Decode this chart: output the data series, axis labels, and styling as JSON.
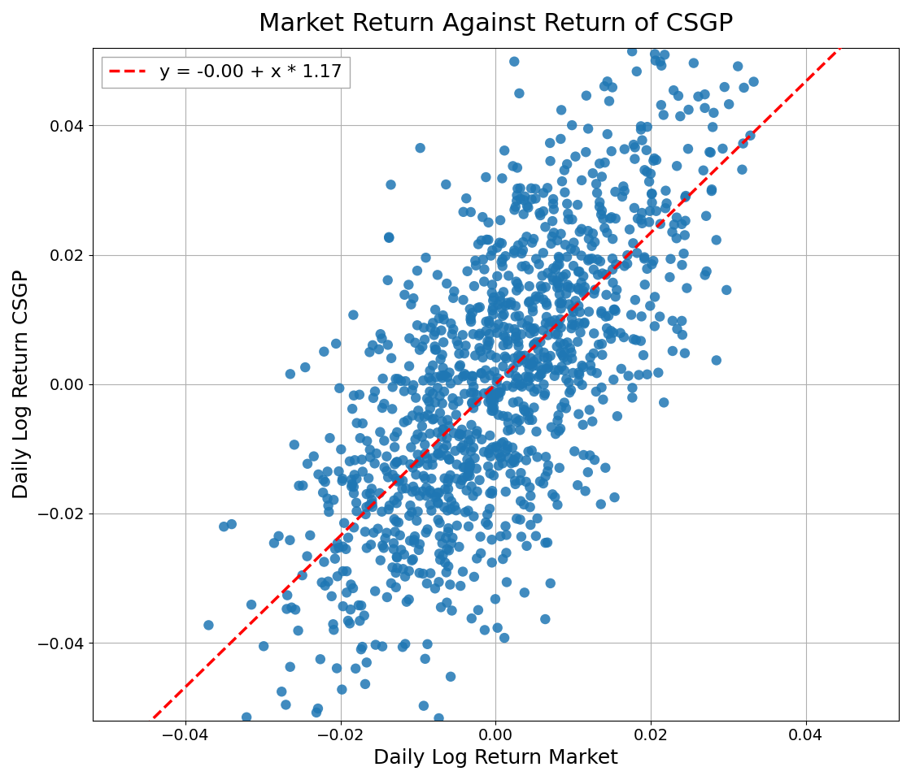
{
  "title": "Market Return Against Return of CSGP",
  "xlabel": "Daily Log Return Market",
  "ylabel": "Daily Log Return CSGP",
  "intercept": -0.0,
  "slope": 1.17,
  "legend_label": "y = -0.00 + x * 1.17",
  "xlim": [
    -0.052,
    0.052
  ],
  "ylim": [
    -0.052,
    0.052
  ],
  "scatter_color": "#1f77b4",
  "line_color": "#ff0000",
  "scatter_alpha": 0.85,
  "scatter_size": 80,
  "seed": 42,
  "n_points": 1200,
  "market_std": 0.013,
  "csgp_noise_std": 0.015,
  "title_fontsize": 22,
  "label_fontsize": 18,
  "tick_fontsize": 14,
  "legend_fontsize": 16,
  "background_color": "#ffffff",
  "grid_color": "#b0b0b0",
  "figwidth": 11.2,
  "figheight": 9.6
}
